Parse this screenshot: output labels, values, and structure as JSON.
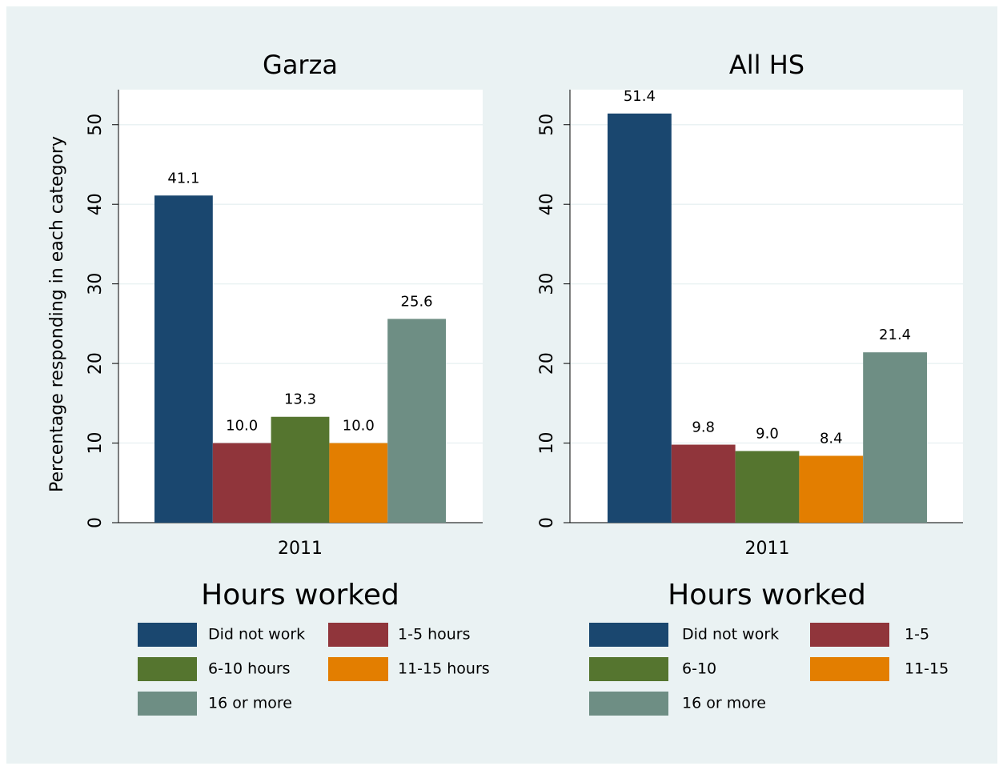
{
  "chart_data": [
    {
      "type": "bar",
      "title": "Garza",
      "y_label": "Percentage responding in each category",
      "categories": [
        "2011"
      ],
      "series": [
        {
          "name": "Did not work",
          "color": "#1a476f",
          "values": [
            41.1
          ],
          "value_labels": [
            "41.1"
          ]
        },
        {
          "name": "1-5 hours",
          "color": "#90353b",
          "values": [
            10.0
          ],
          "value_labels": [
            "10.0"
          ]
        },
        {
          "name": "6-10 hours",
          "color": "#55752f",
          "values": [
            13.3
          ],
          "value_labels": [
            "13.3"
          ]
        },
        {
          "name": "11-15 hours",
          "color": "#e37e00",
          "values": [
            10.0
          ],
          "value_labels": [
            "10.0"
          ]
        },
        {
          "name": "16 or more",
          "color": "#6e8e84",
          "values": [
            25.6
          ],
          "value_labels": [
            "25.6"
          ]
        }
      ],
      "ylim": [
        0,
        54.4
      ],
      "yticks": [
        0,
        10,
        20,
        30,
        40,
        50
      ],
      "grid": true,
      "legend_title": "Hours worked"
    },
    {
      "type": "bar",
      "title": "All HS",
      "categories": [
        "2011"
      ],
      "series": [
        {
          "name": "Did not work",
          "color": "#1a476f",
          "values": [
            51.4
          ],
          "value_labels": [
            "51.4"
          ]
        },
        {
          "name": "1-5",
          "color": "#90353b",
          "values": [
            9.8
          ],
          "value_labels": [
            "9.8"
          ]
        },
        {
          "name": "6-10",
          "color": "#55752f",
          "values": [
            9.0
          ],
          "value_labels": [
            "9.0"
          ]
        },
        {
          "name": "11-15",
          "color": "#e37e00",
          "values": [
            8.4
          ],
          "value_labels": [
            "8.4"
          ]
        },
        {
          "name": "16 or more",
          "color": "#6e8e84",
          "values": [
            21.4
          ],
          "value_labels": [
            "21.4"
          ]
        }
      ],
      "ylim": [
        0,
        54.4
      ],
      "yticks": [
        0,
        10,
        20,
        30,
        40,
        50
      ],
      "grid": true,
      "legend_title": "Hours worked"
    }
  ]
}
